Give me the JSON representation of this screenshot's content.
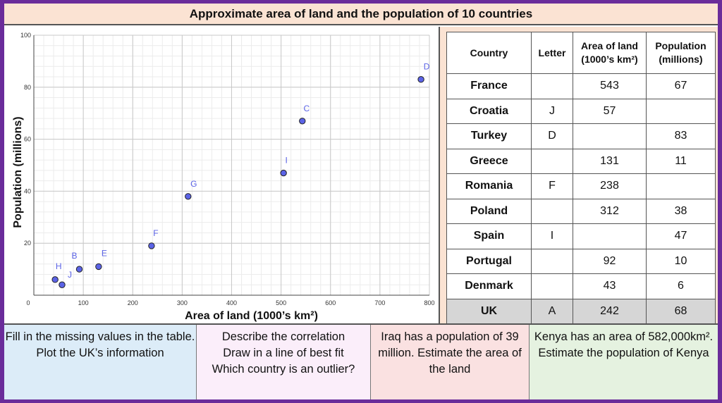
{
  "title": "Approximate area of land and the population of 10 countries",
  "chart_data": {
    "type": "scatter",
    "xlabel": "Area of land (1000’s km²)",
    "ylabel": "Population (millions)",
    "xlim": [
      0,
      800
    ],
    "ylim": [
      0,
      100
    ],
    "x_ticks": [
      "0",
      "100",
      "200",
      "300",
      "400",
      "500",
      "600",
      "700",
      "800"
    ],
    "y_ticks": [
      "20",
      "40",
      "60",
      "80",
      "100"
    ],
    "grid": true,
    "point_color": "#5b63e6",
    "points": [
      {
        "label": "H",
        "x": 43,
        "y": 6
      },
      {
        "label": "J",
        "x": 57,
        "y": 4
      },
      {
        "label": "B",
        "x": 92,
        "y": 10
      },
      {
        "label": "E",
        "x": 131,
        "y": 11
      },
      {
        "label": "F",
        "x": 238,
        "y": 19
      },
      {
        "label": "G",
        "x": 312,
        "y": 38
      },
      {
        "label": "I",
        "x": 505,
        "y": 47
      },
      {
        "label": "C",
        "x": 543,
        "y": 67
      },
      {
        "label": "D",
        "x": 783,
        "y": 83
      }
    ]
  },
  "table": {
    "headers": [
      "Country",
      "Letter",
      "Area of land\n(1000’s km²)",
      "Population\n(millions)"
    ],
    "rows": [
      {
        "country": "France",
        "letter": "",
        "area": "543",
        "population": "67"
      },
      {
        "country": "Croatia",
        "letter": "J",
        "area": "57",
        "population": ""
      },
      {
        "country": "Turkey",
        "letter": "D",
        "area": "",
        "population": "83"
      },
      {
        "country": "Greece",
        "letter": "",
        "area": "131",
        "population": "11"
      },
      {
        "country": "Romania",
        "letter": "F",
        "area": "238",
        "population": ""
      },
      {
        "country": "Poland",
        "letter": "",
        "area": "312",
        "population": "38"
      },
      {
        "country": "Spain",
        "letter": "I",
        "area": "",
        "population": "47"
      },
      {
        "country": "Portugal",
        "letter": "",
        "area": "92",
        "population": "10"
      },
      {
        "country": "Denmark",
        "letter": "",
        "area": "43",
        "population": "6"
      },
      {
        "country": "UK",
        "letter": "A",
        "area": "242",
        "population": "68"
      }
    ]
  },
  "tasks": [
    "Fill in the missing values in the table. Plot the UK’s information",
    "Describe the correlation\nDraw in a line of best fit\nWhich country is an outlier?",
    "Iraq has a population of 39 million. Estimate the area of the land",
    "Kenya has an area of 582,000km². Estimate the population of Kenya"
  ]
}
